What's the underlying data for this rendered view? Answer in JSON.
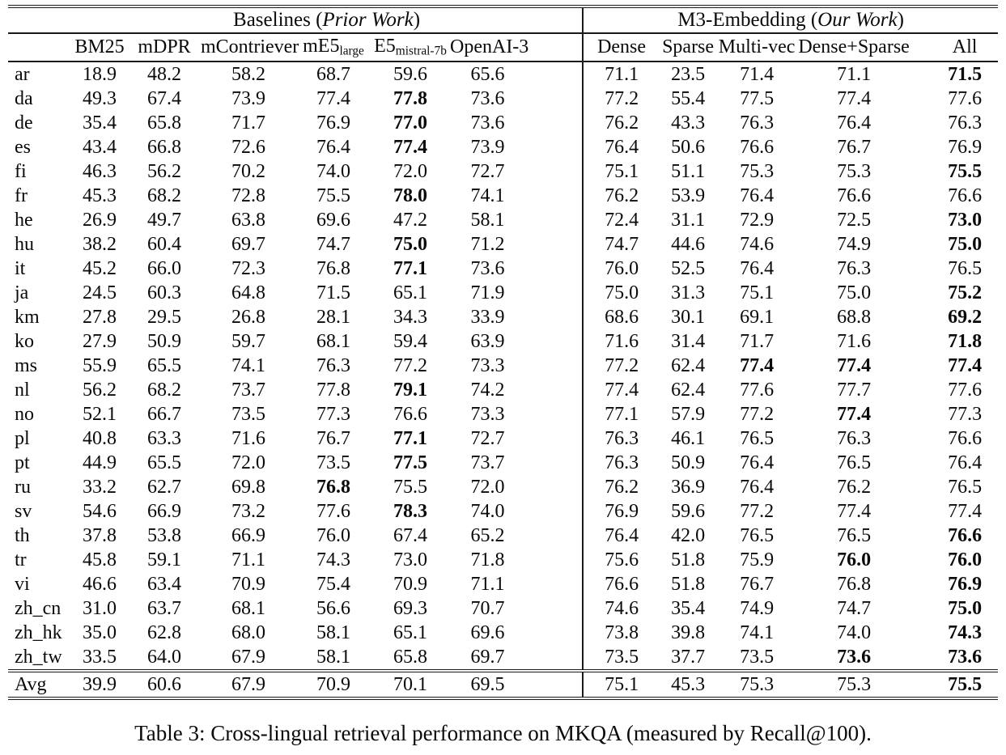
{
  "page": {
    "background": "#ffffff",
    "text_color": "#0a0a0a",
    "rule_color": "#1a1a1a"
  },
  "table": {
    "groups": [
      {
        "prefix": "Baselines (",
        "italic": "Prior Work",
        "suffix": ")",
        "span": 6
      },
      {
        "prefix": "M3-Embedding (",
        "italic": "Our Work",
        "suffix": ")",
        "span": 5
      }
    ],
    "columns": [
      {
        "label": "BM25"
      },
      {
        "label": "mDPR"
      },
      {
        "label": "mContriever"
      },
      {
        "label": "mE5",
        "sub": "large"
      },
      {
        "label": "E5",
        "sub": "mistral-7b"
      },
      {
        "label": "OpenAI-3"
      },
      {
        "label": "Dense"
      },
      {
        "label": "Sparse"
      },
      {
        "label": "Multi-vec"
      },
      {
        "label": "Dense+Sparse"
      },
      {
        "label": "All"
      }
    ],
    "rows": [
      {
        "label": "ar",
        "cells": [
          "18.9",
          "48.2",
          "58.2",
          "68.7",
          "59.6",
          "65.6",
          "71.1",
          "23.5",
          "71.4",
          "71.1",
          "71.5"
        ],
        "bold": [
          10
        ]
      },
      {
        "label": "da",
        "cells": [
          "49.3",
          "67.4",
          "73.9",
          "77.4",
          "77.8",
          "73.6",
          "77.2",
          "55.4",
          "77.5",
          "77.4",
          "77.6"
        ],
        "bold": [
          4
        ]
      },
      {
        "label": "de",
        "cells": [
          "35.4",
          "65.8",
          "71.7",
          "76.9",
          "77.0",
          "73.6",
          "76.2",
          "43.3",
          "76.3",
          "76.4",
          "76.3"
        ],
        "bold": [
          4
        ]
      },
      {
        "label": "es",
        "cells": [
          "43.4",
          "66.8",
          "72.6",
          "76.4",
          "77.4",
          "73.9",
          "76.4",
          "50.6",
          "76.6",
          "76.7",
          "76.9"
        ],
        "bold": [
          4
        ]
      },
      {
        "label": "fi",
        "cells": [
          "46.3",
          "56.2",
          "70.2",
          "74.0",
          "72.0",
          "72.7",
          "75.1",
          "51.1",
          "75.3",
          "75.3",
          "75.5"
        ],
        "bold": [
          10
        ]
      },
      {
        "label": "fr",
        "cells": [
          "45.3",
          "68.2",
          "72.8",
          "75.5",
          "78.0",
          "74.1",
          "76.2",
          "53.9",
          "76.4",
          "76.6",
          "76.6"
        ],
        "bold": [
          4
        ]
      },
      {
        "label": "he",
        "cells": [
          "26.9",
          "49.7",
          "63.8",
          "69.6",
          "47.2",
          "58.1",
          "72.4",
          "31.1",
          "72.9",
          "72.5",
          "73.0"
        ],
        "bold": [
          10
        ]
      },
      {
        "label": "hu",
        "cells": [
          "38.2",
          "60.4",
          "69.7",
          "74.7",
          "75.0",
          "71.2",
          "74.7",
          "44.6",
          "74.6",
          "74.9",
          "75.0"
        ],
        "bold": [
          4,
          10
        ]
      },
      {
        "label": "it",
        "cells": [
          "45.2",
          "66.0",
          "72.3",
          "76.8",
          "77.1",
          "73.6",
          "76.0",
          "52.5",
          "76.4",
          "76.3",
          "76.5"
        ],
        "bold": [
          4
        ]
      },
      {
        "label": "ja",
        "cells": [
          "24.5",
          "60.3",
          "64.8",
          "71.5",
          "65.1",
          "71.9",
          "75.0",
          "31.3",
          "75.1",
          "75.0",
          "75.2"
        ],
        "bold": [
          10
        ]
      },
      {
        "label": "km",
        "cells": [
          "27.8",
          "29.5",
          "26.8",
          "28.1",
          "34.3",
          "33.9",
          "68.6",
          "30.1",
          "69.1",
          "68.8",
          "69.2"
        ],
        "bold": [
          10
        ]
      },
      {
        "label": "ko",
        "cells": [
          "27.9",
          "50.9",
          "59.7",
          "68.1",
          "59.4",
          "63.9",
          "71.6",
          "31.4",
          "71.7",
          "71.6",
          "71.8"
        ],
        "bold": [
          10
        ]
      },
      {
        "label": "ms",
        "cells": [
          "55.9",
          "65.5",
          "74.1",
          "76.3",
          "77.2",
          "73.3",
          "77.2",
          "62.4",
          "77.4",
          "77.4",
          "77.4"
        ],
        "bold": [
          8,
          9,
          10
        ]
      },
      {
        "label": "nl",
        "cells": [
          "56.2",
          "68.2",
          "73.7",
          "77.8",
          "79.1",
          "74.2",
          "77.4",
          "62.4",
          "77.6",
          "77.7",
          "77.6"
        ],
        "bold": [
          4
        ]
      },
      {
        "label": "no",
        "cells": [
          "52.1",
          "66.7",
          "73.5",
          "77.3",
          "76.6",
          "73.3",
          "77.1",
          "57.9",
          "77.2",
          "77.4",
          "77.3"
        ],
        "bold": [
          9
        ]
      },
      {
        "label": "pl",
        "cells": [
          "40.8",
          "63.3",
          "71.6",
          "76.7",
          "77.1",
          "72.7",
          "76.3",
          "46.1",
          "76.5",
          "76.3",
          "76.6"
        ],
        "bold": [
          4
        ]
      },
      {
        "label": "pt",
        "cells": [
          "44.9",
          "65.5",
          "72.0",
          "73.5",
          "77.5",
          "73.7",
          "76.3",
          "50.9",
          "76.4",
          "76.5",
          "76.4"
        ],
        "bold": [
          4
        ]
      },
      {
        "label": "ru",
        "cells": [
          "33.2",
          "62.7",
          "69.8",
          "76.8",
          "75.5",
          "72.0",
          "76.2",
          "36.9",
          "76.4",
          "76.2",
          "76.5"
        ],
        "bold": [
          3
        ]
      },
      {
        "label": "sv",
        "cells": [
          "54.6",
          "66.9",
          "73.2",
          "77.6",
          "78.3",
          "74.0",
          "76.9",
          "59.6",
          "77.2",
          "77.4",
          "77.4"
        ],
        "bold": [
          4
        ]
      },
      {
        "label": "th",
        "cells": [
          "37.8",
          "53.8",
          "66.9",
          "76.0",
          "67.4",
          "65.2",
          "76.4",
          "42.0",
          "76.5",
          "76.5",
          "76.6"
        ],
        "bold": [
          10
        ]
      },
      {
        "label": "tr",
        "cells": [
          "45.8",
          "59.1",
          "71.1",
          "74.3",
          "73.0",
          "71.8",
          "75.6",
          "51.8",
          "75.9",
          "76.0",
          "76.0"
        ],
        "bold": [
          9,
          10
        ]
      },
      {
        "label": "vi",
        "cells": [
          "46.6",
          "63.4",
          "70.9",
          "75.4",
          "70.9",
          "71.1",
          "76.6",
          "51.8",
          "76.7",
          "76.8",
          "76.9"
        ],
        "bold": [
          10
        ]
      },
      {
        "label": "zh_cn",
        "cells": [
          "31.0",
          "63.7",
          "68.1",
          "56.6",
          "69.3",
          "70.7",
          "74.6",
          "35.4",
          "74.9",
          "74.7",
          "75.0"
        ],
        "bold": [
          10
        ]
      },
      {
        "label": "zh_hk",
        "cells": [
          "35.0",
          "62.8",
          "68.0",
          "58.1",
          "65.1",
          "69.6",
          "73.8",
          "39.8",
          "74.1",
          "74.0",
          "74.3"
        ],
        "bold": [
          10
        ]
      },
      {
        "label": "zh_tw",
        "cells": [
          "33.5",
          "64.0",
          "67.9",
          "58.1",
          "65.8",
          "69.7",
          "73.5",
          "37.7",
          "73.5",
          "73.6",
          "73.6"
        ],
        "bold": [
          9,
          10
        ]
      }
    ],
    "avg_row": {
      "label": "Avg",
      "cells": [
        "39.9",
        "60.6",
        "67.9",
        "70.9",
        "70.1",
        "69.5",
        "75.1",
        "45.3",
        "75.3",
        "75.3",
        "75.5"
      ],
      "bold": [
        10
      ]
    }
  },
  "caption": {
    "text": "Table 3: Cross-lingual retrieval performance on MKQA (measured by Recall@100)."
  }
}
